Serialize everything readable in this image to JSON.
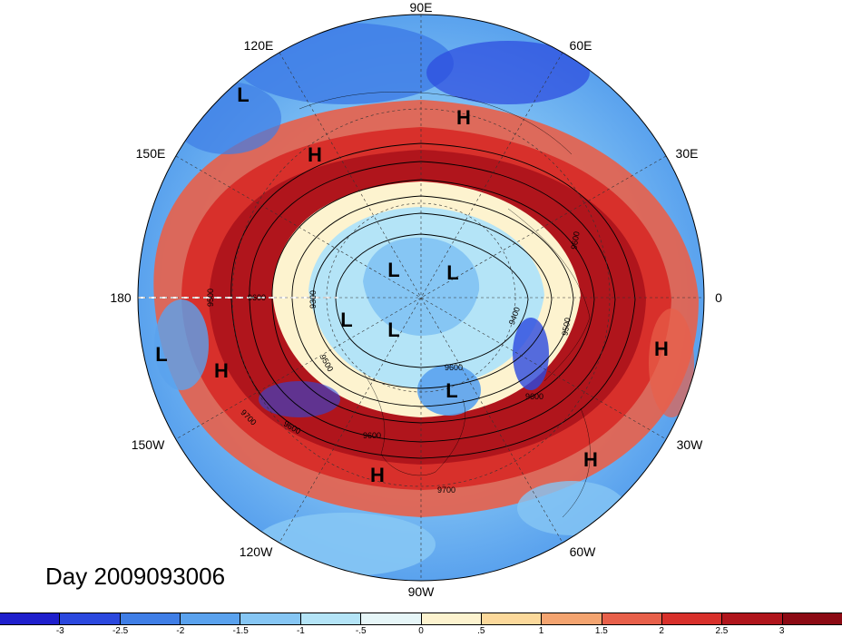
{
  "longitude_labels": [
    {
      "id": "lon-90e",
      "text": "90E"
    },
    {
      "id": "lon-60e",
      "text": "60E"
    },
    {
      "id": "lon-120e",
      "text": "120E"
    },
    {
      "id": "lon-30e",
      "text": "30E"
    },
    {
      "id": "lon-150e",
      "text": "150E"
    },
    {
      "id": "lon-180",
      "text": "180"
    },
    {
      "id": "lon-0",
      "text": "0"
    },
    {
      "id": "lon-150w",
      "text": "150W"
    },
    {
      "id": "lon-30w",
      "text": "30W"
    },
    {
      "id": "lon-120w",
      "text": "120W"
    },
    {
      "id": "lon-60w",
      "text": "60W"
    },
    {
      "id": "lon-90w",
      "text": "90W"
    }
  ],
  "pressure_centers": [
    {
      "text": "L"
    },
    {
      "text": "H"
    },
    {
      "text": "H"
    },
    {
      "text": "L"
    },
    {
      "text": "L"
    },
    {
      "text": "L"
    },
    {
      "text": "L"
    },
    {
      "text": "L"
    },
    {
      "text": "L"
    },
    {
      "text": "H"
    },
    {
      "text": "H"
    },
    {
      "text": "H"
    },
    {
      "text": "H"
    }
  ],
  "contour_labels": [
    "9600",
    "9500",
    "9300",
    "9600",
    "9500",
    "9400",
    "9500",
    "9600",
    "9600",
    "9700",
    "9600",
    "9700",
    "9600"
  ],
  "day_label": "Day 2009093006",
  "colorbar": {
    "colors": [
      "#1f1fcc",
      "#2b48de",
      "#3f7ee6",
      "#5aa2ee",
      "#86c6f4",
      "#b4e4f7",
      "#e6f6f8",
      "#fdf3cf",
      "#fcd99b",
      "#f4a470",
      "#e8604a",
      "#d8302b",
      "#b0151c",
      "#8c0a14"
    ],
    "ticks": [
      "-3",
      "-2.5",
      "-2",
      "-1.5",
      "-1",
      "-.5",
      "0",
      ".5",
      "1",
      "1.5",
      "2",
      "2.5",
      "3"
    ]
  }
}
